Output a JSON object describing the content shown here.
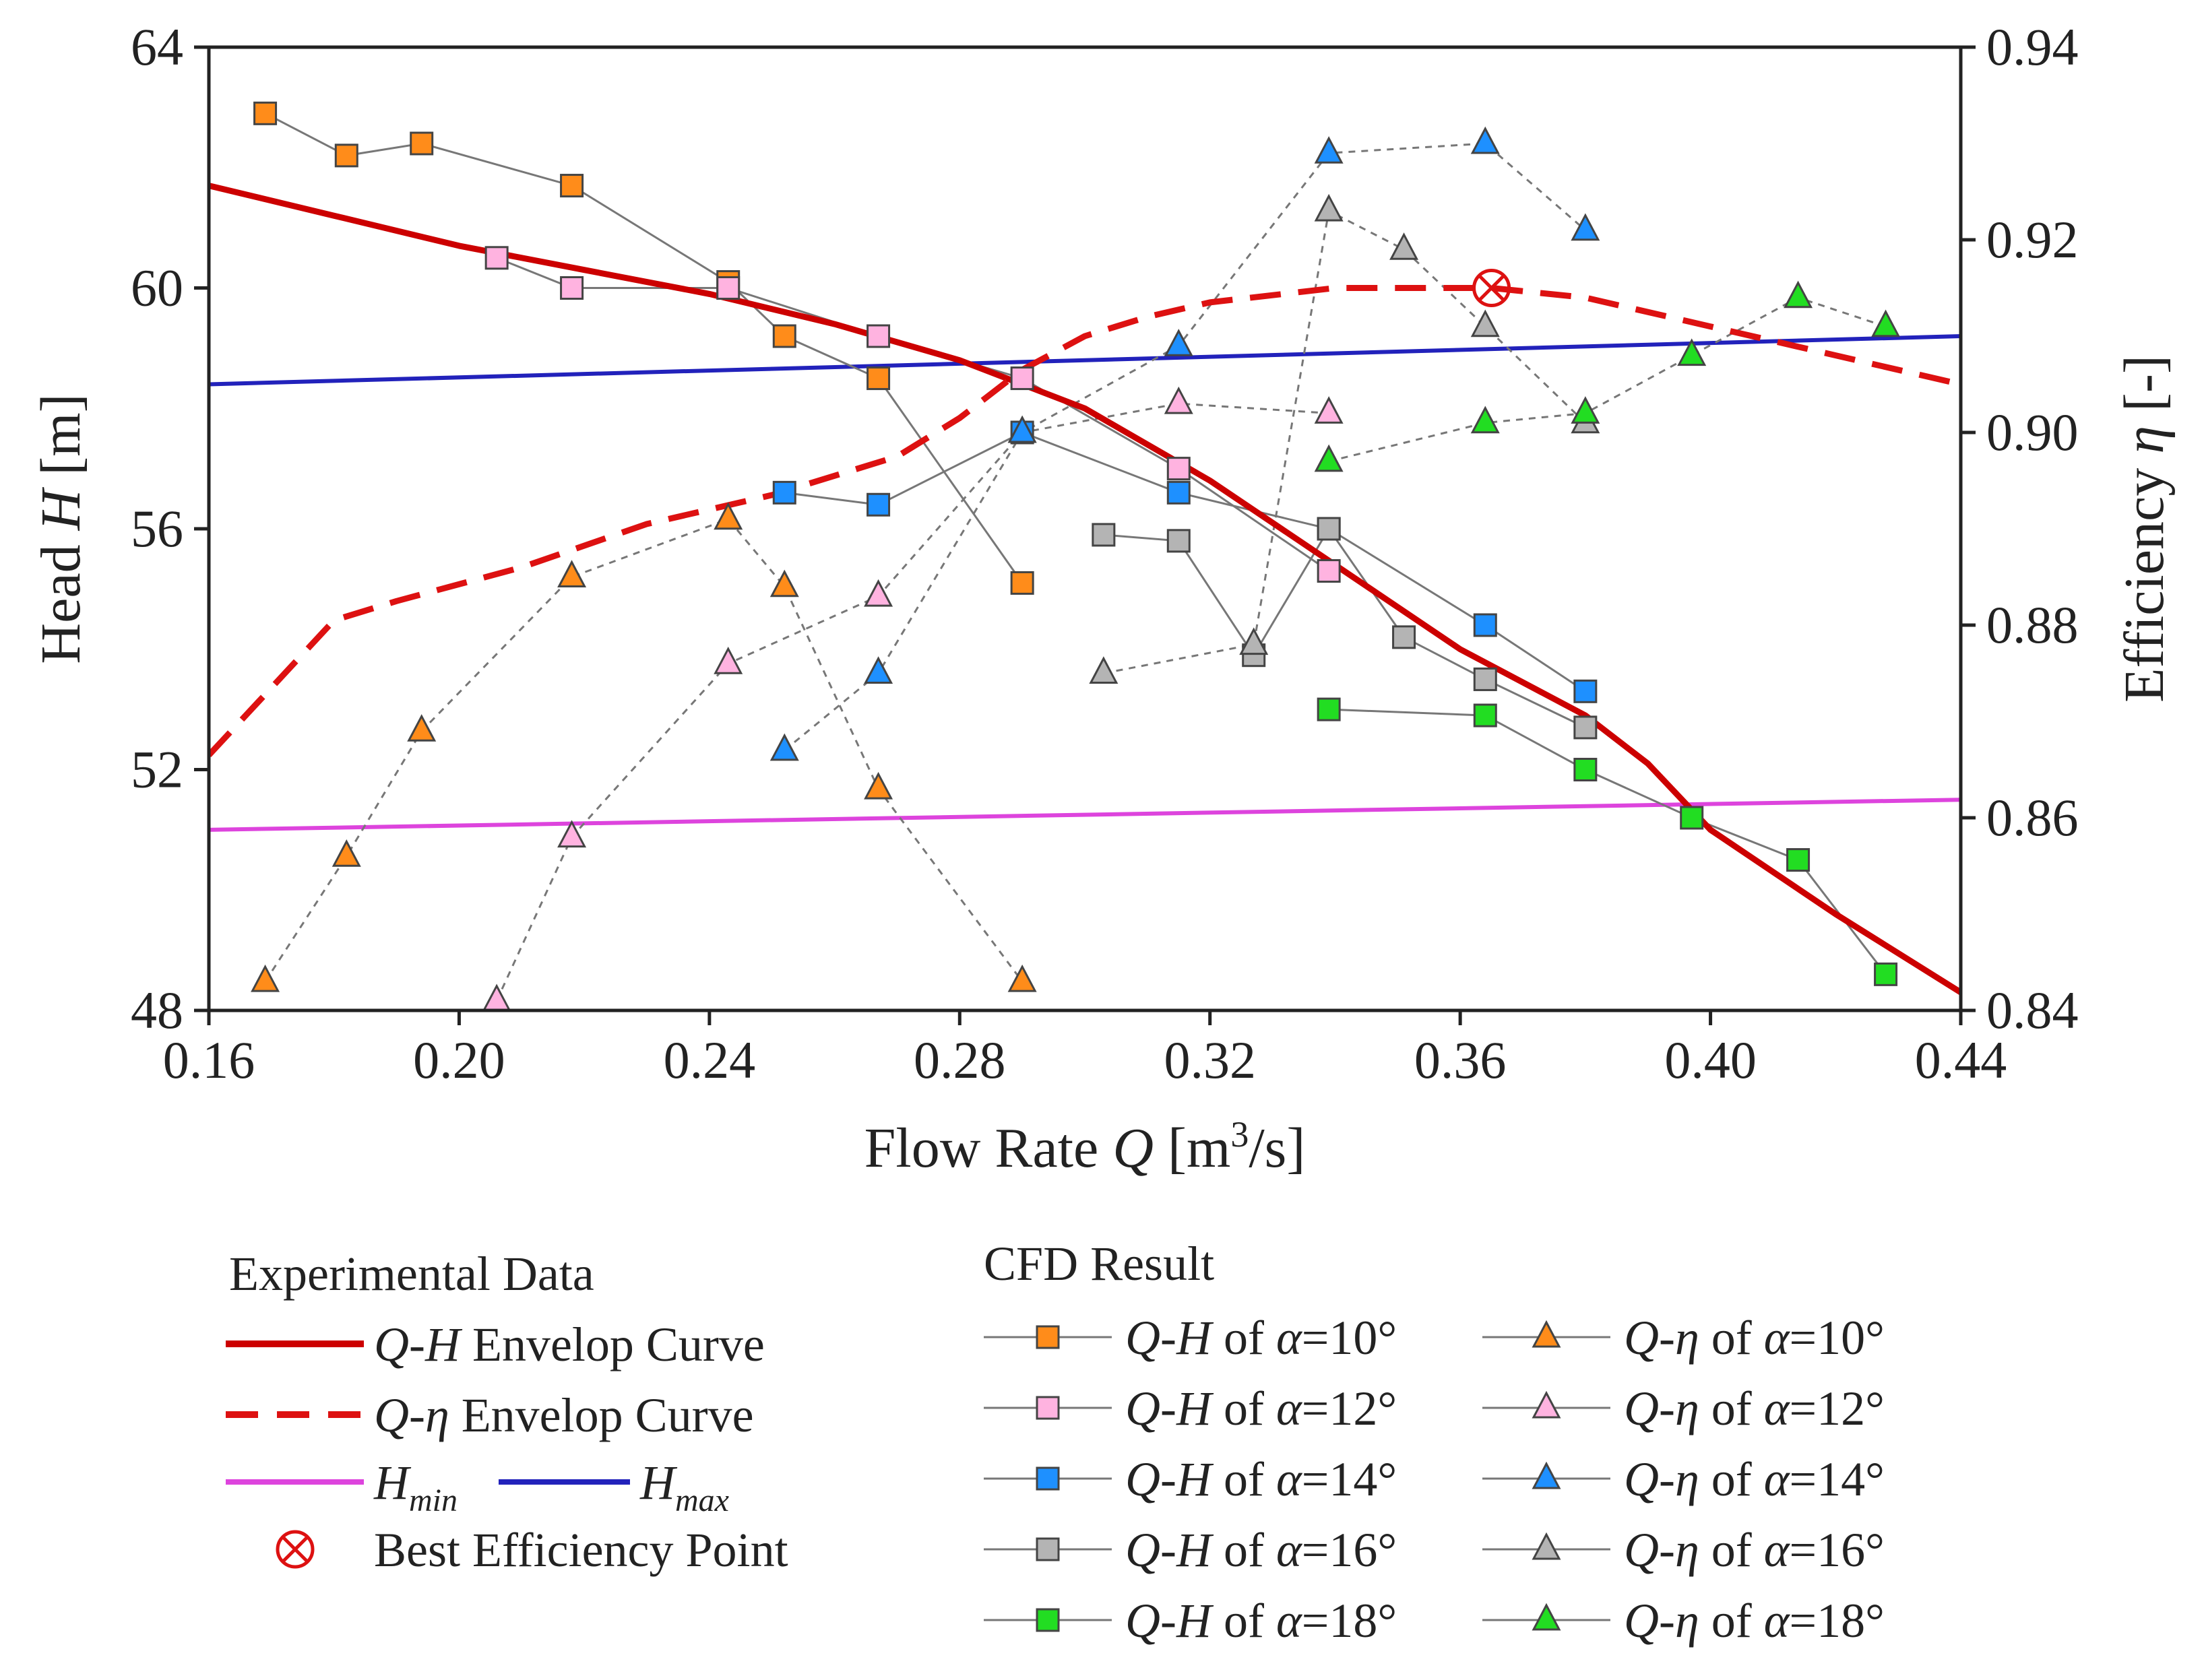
{
  "chart_data": {
    "type": "line",
    "title": "",
    "xlabel": {
      "main": "Flow Rate ",
      "var": "Q",
      "unit_pre": " [m",
      "unit_sup": "3",
      "unit_post": "/s]"
    },
    "ylabel_left": {
      "main": "Head ",
      "var": "H",
      "unit": " [m]"
    },
    "ylabel_right": {
      "main": "Efficiency ",
      "var": "η",
      "unit": " [-]"
    },
    "xlim": [
      0.16,
      0.44
    ],
    "ylim_left": [
      48,
      64
    ],
    "ylim_right": [
      0.84,
      0.94
    ],
    "x_ticks": [
      "0.16",
      "0.20",
      "0.24",
      "0.28",
      "0.32",
      "0.36",
      "0.40",
      "0.44"
    ],
    "x_tick_values": [
      0.16,
      0.2,
      0.24,
      0.28,
      0.32,
      0.36,
      0.4,
      0.44
    ],
    "y_left_ticks": [
      "48",
      "52",
      "56",
      "60",
      "64"
    ],
    "y_left_tick_values": [
      48,
      52,
      56,
      60,
      64
    ],
    "y_right_ticks": [
      "0.84",
      "0.86",
      "0.88",
      "0.90",
      "0.92",
      "0.94"
    ],
    "y_right_tick_values": [
      0.84,
      0.86,
      0.88,
      0.9,
      0.92,
      0.94
    ],
    "colors": {
      "qh_envelope": "#cc0000",
      "qeta_envelope": "#dd1111",
      "hmin": "#dd44dd",
      "hmax": "#2222bb",
      "alpha10": "#ff8c1a",
      "alpha12": "#ffb3e0",
      "alpha14": "#1e90ff",
      "alpha16": "#b4b4b4",
      "alpha18": "#22dd22",
      "connector": "#777777"
    },
    "experimental": {
      "qh_envelope": {
        "x": [
          0.16,
          0.18,
          0.2,
          0.22,
          0.24,
          0.26,
          0.28,
          0.3,
          0.32,
          0.34,
          0.36,
          0.38,
          0.39,
          0.4,
          0.42,
          0.44
        ],
        "y": [
          61.7,
          61.2,
          60.7,
          60.3,
          59.9,
          59.4,
          58.8,
          58.0,
          56.8,
          55.4,
          54.0,
          52.9,
          52.1,
          51.0,
          49.6,
          48.3
        ]
      },
      "qeta_envelope": {
        "x": [
          0.16,
          0.18,
          0.19,
          0.21,
          0.23,
          0.25,
          0.27,
          0.28,
          0.29,
          0.3,
          0.31,
          0.32,
          0.34,
          0.365,
          0.38,
          0.4,
          0.42,
          0.44
        ],
        "y": [
          0.8665,
          0.8805,
          0.8825,
          0.886,
          0.8905,
          0.8935,
          0.8975,
          0.9015,
          0.9065,
          0.91,
          0.912,
          0.9135,
          0.915,
          0.915,
          0.914,
          0.911,
          0.908,
          0.905
        ]
      },
      "hmin": {
        "x": [
          0.16,
          0.44
        ],
        "y": [
          51.0,
          51.5
        ]
      },
      "hmax": {
        "x": [
          0.16,
          0.44
        ],
        "y": [
          58.4,
          59.2
        ]
      },
      "best_efficiency_point": {
        "x": 0.365,
        "y_eta": 0.915
      }
    },
    "series": [
      {
        "name": "Q-H of α=10°",
        "axis": "left",
        "marker": "square",
        "color_key": "alpha10",
        "dashed": false,
        "x": [
          0.169,
          0.182,
          0.194,
          0.218,
          0.243,
          0.252,
          0.267,
          0.29
        ],
        "y": [
          62.9,
          62.2,
          62.4,
          61.7,
          60.1,
          59.2,
          58.5,
          55.1
        ]
      },
      {
        "name": "Q-H of α=12°",
        "axis": "left",
        "marker": "square",
        "color_key": "alpha12",
        "dashed": false,
        "x": [
          0.206,
          0.218,
          0.243,
          0.267,
          0.29,
          0.315,
          0.339
        ],
        "y": [
          60.5,
          60.0,
          60.0,
          59.2,
          58.5,
          57.0,
          55.3
        ]
      },
      {
        "name": "Q-H of α=14°",
        "axis": "left",
        "marker": "square",
        "color_key": "alpha14",
        "dashed": false,
        "x": [
          0.252,
          0.267,
          0.29,
          0.315,
          0.339,
          0.364,
          0.38
        ],
        "y": [
          56.6,
          56.4,
          57.6,
          56.6,
          56.0,
          54.4,
          53.3
        ]
      },
      {
        "name": "Q-H of α=16°",
        "axis": "left",
        "marker": "square",
        "color_key": "alpha16",
        "dashed": false,
        "x": [
          0.303,
          0.315,
          0.327,
          0.339,
          0.351,
          0.364,
          0.38
        ],
        "y": [
          55.9,
          55.8,
          53.9,
          56.0,
          54.2,
          53.5,
          52.7
        ]
      },
      {
        "name": "Q-H of α=18°",
        "axis": "left",
        "marker": "square",
        "color_key": "alpha18",
        "dashed": false,
        "x": [
          0.339,
          0.364,
          0.38,
          0.397,
          0.414,
          0.428
        ],
        "y": [
          53.0,
          52.9,
          52.0,
          51.2,
          50.5,
          48.6
        ]
      },
      {
        "name": "Q-η of α=10°",
        "axis": "right",
        "marker": "triangle",
        "color_key": "alpha10",
        "dashed": true,
        "x": [
          0.169,
          0.182,
          0.194,
          0.218,
          0.243,
          0.252,
          0.267,
          0.29
        ],
        "y": [
          0.843,
          0.856,
          0.869,
          0.885,
          0.891,
          0.884,
          0.863,
          0.843
        ]
      },
      {
        "name": "Q-η of α=12°",
        "axis": "right",
        "marker": "triangle",
        "color_key": "alpha12",
        "dashed": true,
        "x": [
          0.206,
          0.218,
          0.243,
          0.267,
          0.29,
          0.315,
          0.339
        ],
        "y": [
          0.841,
          0.858,
          0.876,
          0.883,
          0.9,
          0.903,
          0.902
        ]
      },
      {
        "name": "Q-η of α=14°",
        "axis": "right",
        "marker": "triangle",
        "color_key": "alpha14",
        "dashed": true,
        "x": [
          0.252,
          0.267,
          0.29,
          0.315,
          0.339,
          0.364,
          0.38
        ],
        "y": [
          0.867,
          0.875,
          0.9,
          0.909,
          0.929,
          0.93,
          0.921
        ]
      },
      {
        "name": "Q-η of α=16°",
        "axis": "right",
        "marker": "triangle",
        "color_key": "alpha16",
        "dashed": true,
        "x": [
          0.303,
          0.327,
          0.339,
          0.351,
          0.364,
          0.38
        ],
        "y": [
          0.875,
          0.878,
          0.923,
          0.919,
          0.911,
          0.901
        ]
      },
      {
        "name": "Q-η of α=18°",
        "axis": "right",
        "marker": "triangle",
        "color_key": "alpha18",
        "dashed": true,
        "x": [
          0.339,
          0.364,
          0.38,
          0.397,
          0.414,
          0.428
        ],
        "y": [
          0.897,
          0.901,
          0.902,
          0.908,
          0.914,
          0.911
        ]
      }
    ],
    "legend": {
      "experimental_title": "Experimental Data",
      "cfd_title": "CFD Result",
      "qh_envelope": {
        "var": "Q-H",
        "text": " Envelop Curve"
      },
      "qeta_envelope": {
        "var": "Q-η",
        "text": " Envelop Curve"
      },
      "hmin": {
        "var": "H",
        "sub": "min"
      },
      "hmax": {
        "var": "H",
        "sub": "max"
      },
      "bep": "Best Efficiency Point",
      "entry_parts": {
        "qh": "Q-H",
        "qeta": "Q-η",
        "of": " of ",
        "alpha": "α",
        "eq": "="
      },
      "angles": [
        "10°",
        "12°",
        "14°",
        "16°",
        "18°"
      ]
    }
  }
}
